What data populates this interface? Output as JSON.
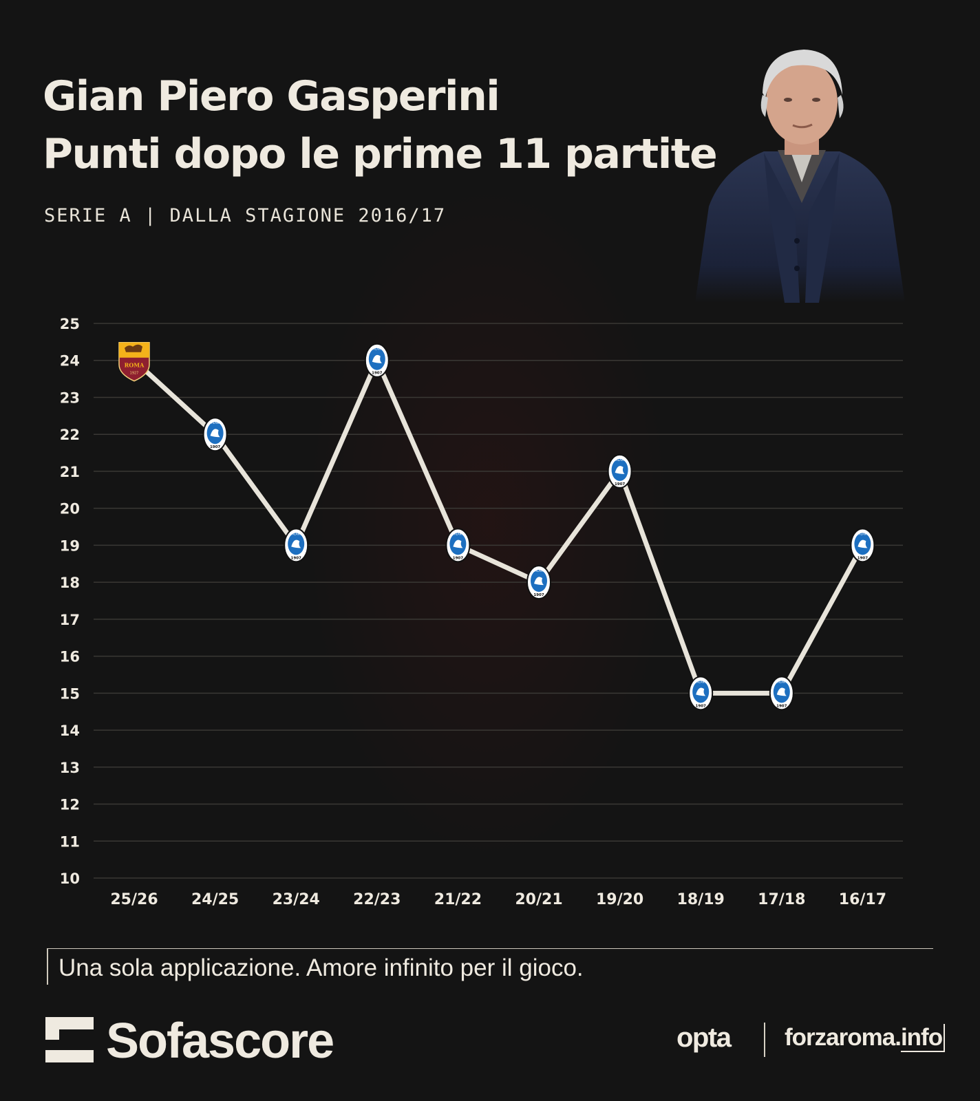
{
  "header": {
    "title_line1": "Gian Piero Gasperini",
    "title_line2": "Punti dopo le prime 11 partite",
    "subtitle": "SERIE A | DALLA STAGIONE 2016/17"
  },
  "chart_data": {
    "type": "line",
    "categories": [
      "25/26",
      "24/25",
      "23/24",
      "22/23",
      "21/22",
      "20/21",
      "19/20",
      "18/19",
      "17/18",
      "16/17"
    ],
    "values": [
      24,
      22,
      19,
      24,
      19,
      18,
      21,
      15,
      15,
      19
    ],
    "clubs": [
      "roma",
      "atalanta",
      "atalanta",
      "atalanta",
      "atalanta",
      "atalanta",
      "atalanta",
      "atalanta",
      "atalanta",
      "atalanta"
    ],
    "ylim": [
      10,
      25
    ],
    "yticks": [
      25,
      24,
      23,
      22,
      21,
      20,
      19,
      18,
      17,
      16,
      15,
      14,
      13,
      12,
      11,
      10
    ],
    "grid": true,
    "title": "",
    "xlabel": "",
    "ylabel": "",
    "line_color": "#e8e4da",
    "marker_labels": {
      "roma": "ROMA",
      "roma_year": "1927",
      "atalanta": "ATALANTA",
      "atalanta_year": "1907"
    }
  },
  "footer": {
    "tagline": "Una sola applicazione. Amore infinito per il gioco.",
    "brand": "Sofascore",
    "partner1": "opta",
    "partner2_main": "forzaroma.",
    "partner2_suffix": "info"
  },
  "icons": {
    "brand_logo": "sofascore-logo-icon",
    "portrait": "coach-portrait-illustration"
  },
  "colors": {
    "background": "#141414",
    "text": "#efeae0",
    "grid": "#3a3835",
    "atalanta_blue": "#1d6fc0",
    "roma_gold": "#f4b21a",
    "roma_red": "#8e1f2f"
  }
}
